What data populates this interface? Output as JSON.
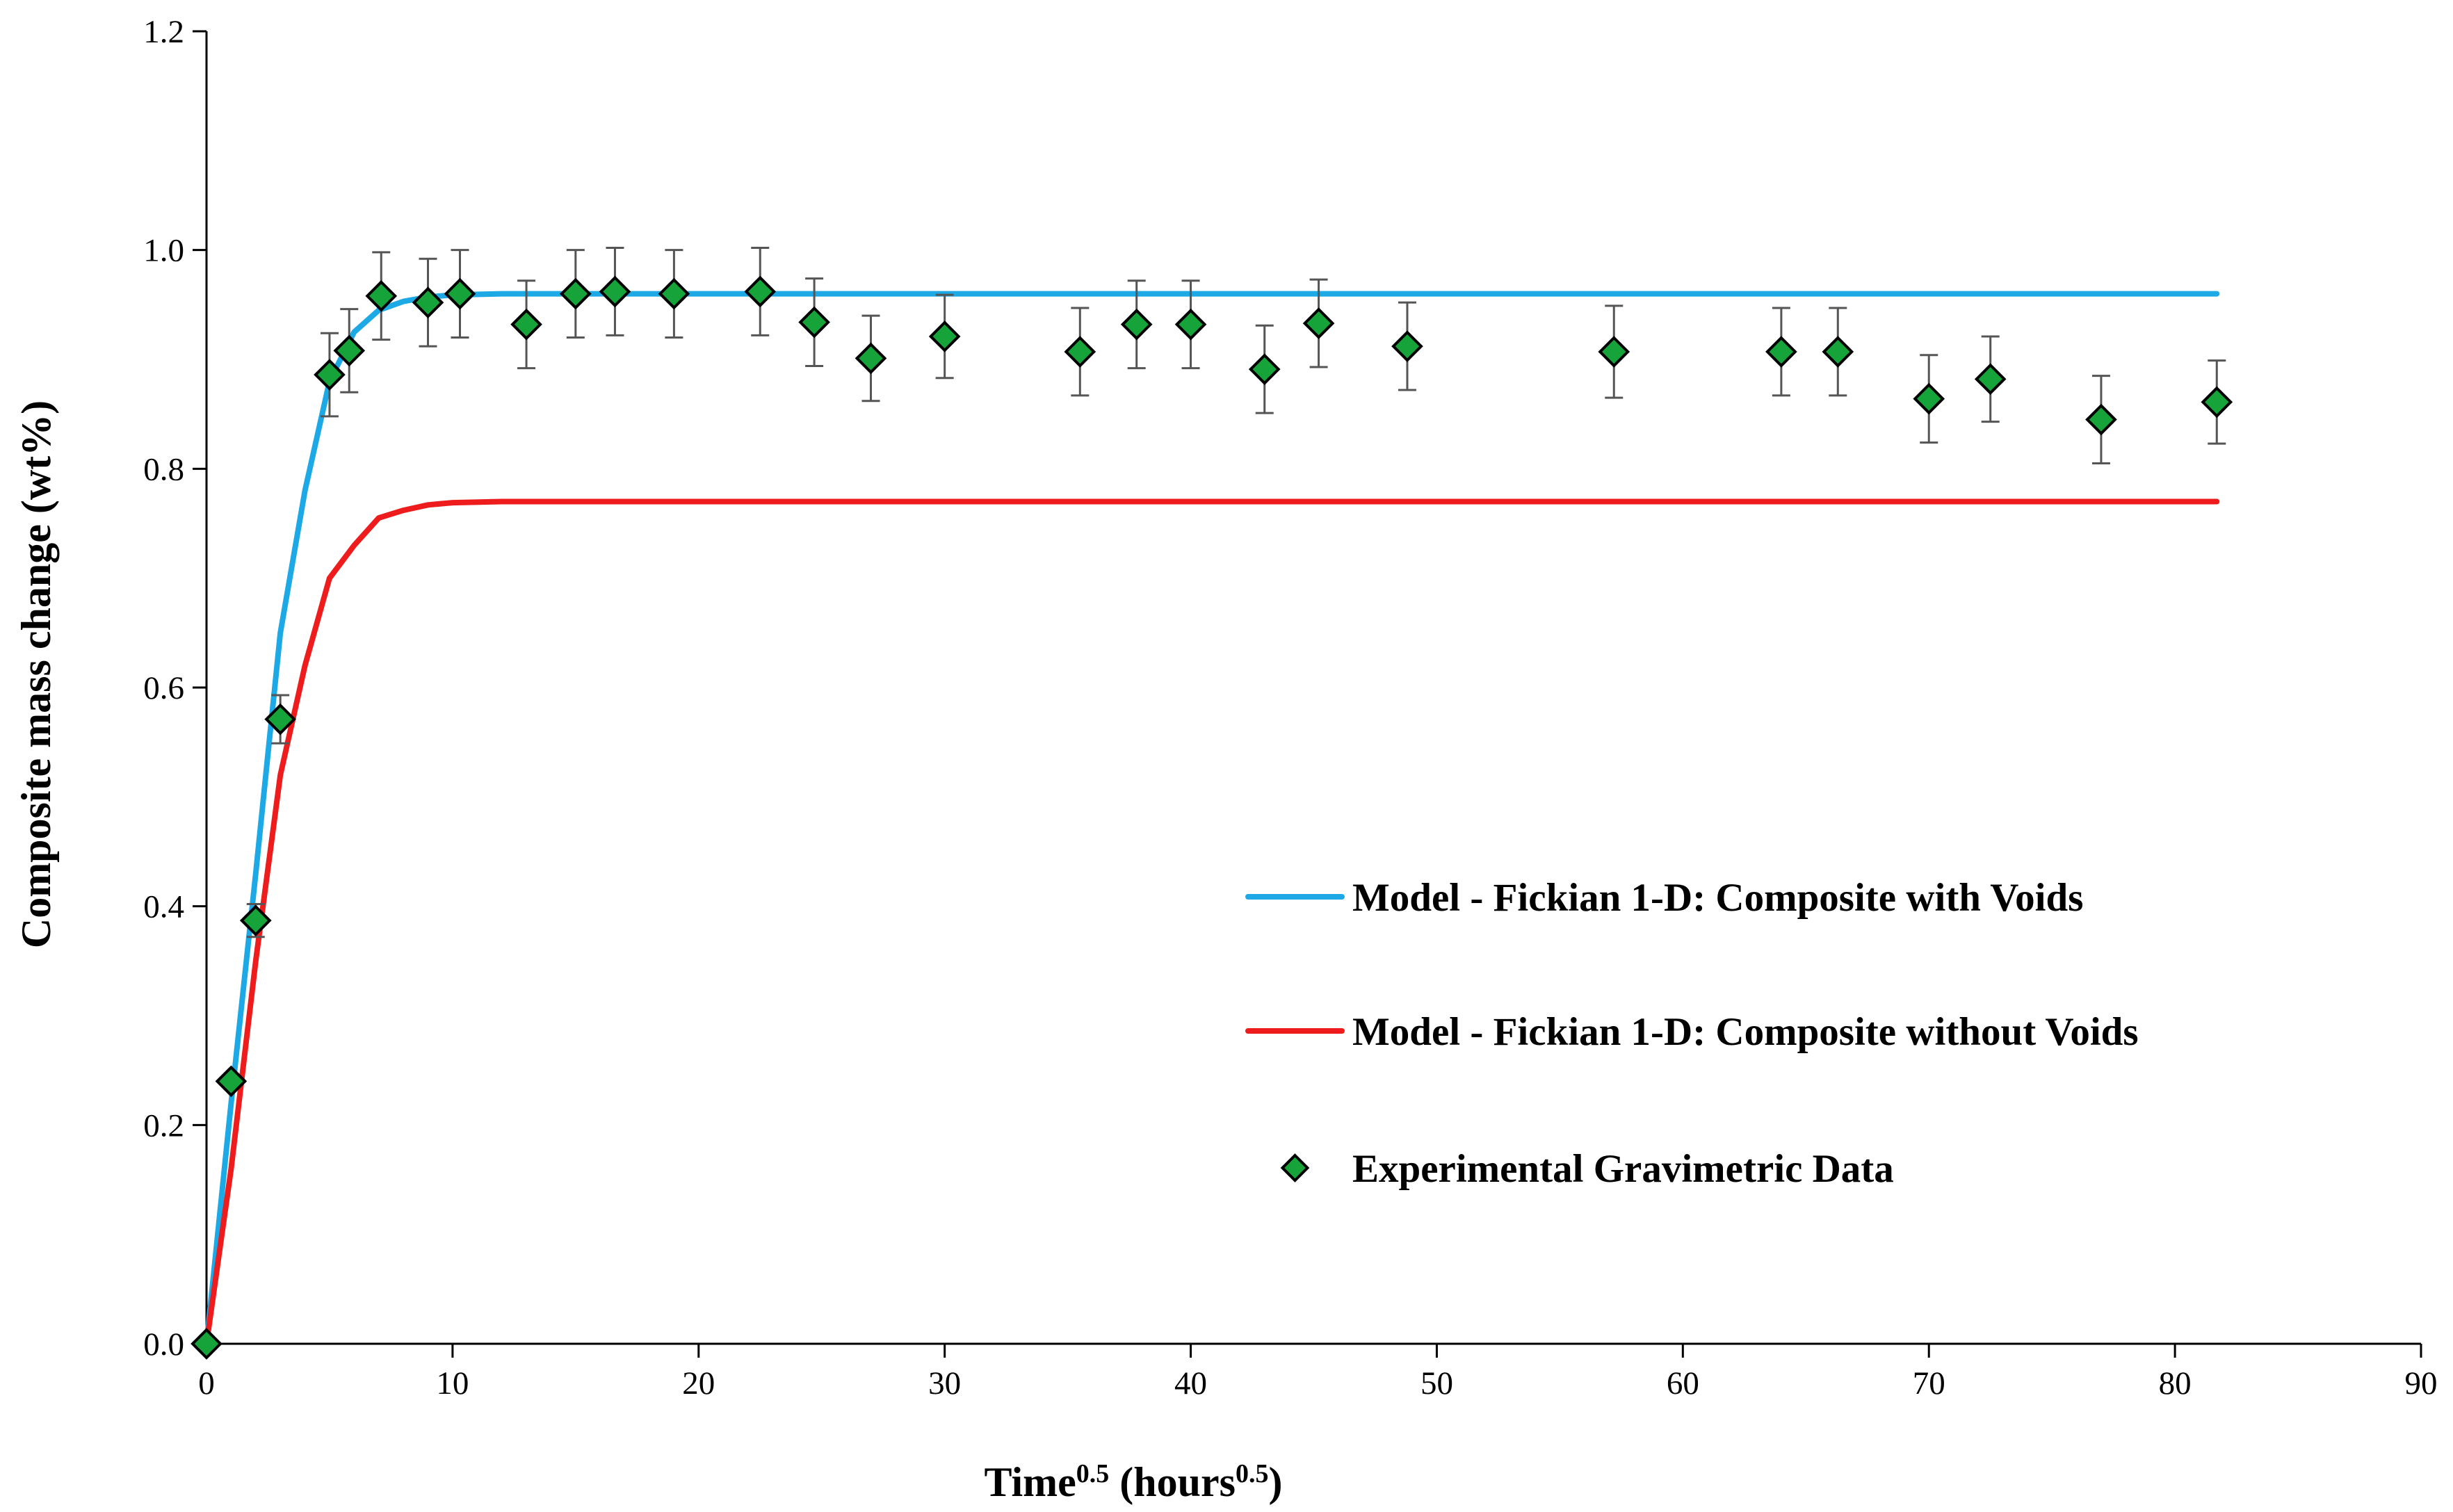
{
  "chart_data": {
    "type": "scatter",
    "title": "",
    "xlabel": {
      "main": "Time",
      "main_sup": "0.5",
      "unit_open": " (hours",
      "unit_sup": "0.5",
      "unit_close": ")"
    },
    "ylabel": "Composite mass change (wt%)",
    "xlim": [
      0,
      90
    ],
    "ylim": [
      0,
      1.2
    ],
    "xticks": [
      "0",
      "10",
      "20",
      "30",
      "40",
      "50",
      "60",
      "70",
      "80",
      "90"
    ],
    "yticks": [
      "0.0",
      "0.2",
      "0.4",
      "0.6",
      "0.8",
      "1.0",
      "1.2"
    ],
    "grid": false,
    "legend_position": "center-right",
    "series": [
      {
        "name": "Model - Fickian 1-D: Composite with Voids",
        "kind": "line",
        "color": "#1CA9E6",
        "x": [
          0,
          1,
          2,
          3,
          4,
          5,
          6,
          7,
          8,
          9,
          10,
          12,
          15,
          20,
          30,
          40,
          50,
          60,
          70,
          81.7
        ],
        "y": [
          0,
          0.22,
          0.43,
          0.65,
          0.78,
          0.88,
          0.925,
          0.945,
          0.953,
          0.957,
          0.959,
          0.96,
          0.96,
          0.96,
          0.96,
          0.96,
          0.96,
          0.96,
          0.96,
          0.96
        ]
      },
      {
        "name": "Model - Fickian 1-D: Composite without Voids",
        "kind": "line",
        "color": "#EE1C1C",
        "x": [
          0,
          1,
          2,
          3,
          4,
          5,
          6,
          7,
          8,
          9,
          10,
          12,
          15,
          20,
          30,
          40,
          50,
          60,
          70,
          81.7
        ],
        "y": [
          0,
          0.16,
          0.35,
          0.52,
          0.62,
          0.7,
          0.73,
          0.755,
          0.762,
          0.767,
          0.769,
          0.77,
          0.77,
          0.77,
          0.77,
          0.77,
          0.77,
          0.77,
          0.77,
          0.77
        ]
      },
      {
        "name": "Experimental Gravimetric Data",
        "kind": "scatter",
        "marker": "diamond",
        "color": "#16A43A",
        "x": [
          0,
          1,
          2,
          3,
          5,
          5.8,
          7.1,
          9,
          10.3,
          13,
          15,
          16.6,
          19,
          22.5,
          24.7,
          27,
          30,
          35.5,
          37.8,
          40,
          43,
          45.2,
          48.8,
          57.2,
          64,
          66.3,
          70,
          72.5,
          77,
          81.7
        ],
        "y": [
          0,
          0.24,
          0.387,
          0.571,
          0.886,
          0.908,
          0.958,
          0.952,
          0.96,
          0.932,
          0.96,
          0.962,
          0.96,
          0.962,
          0.934,
          0.901,
          0.921,
          0.907,
          0.932,
          0.932,
          0.891,
          0.933,
          0.912,
          0.907,
          0.907,
          0.907,
          0.864,
          0.882,
          0.845,
          0.861
        ],
        "yerr": [
          0,
          0,
          0.015,
          0.022,
          0.038,
          0.038,
          0.04,
          0.04,
          0.04,
          0.04,
          0.04,
          0.04,
          0.04,
          0.04,
          0.04,
          0.039,
          0.038,
          0.04,
          0.04,
          0.04,
          0.04,
          0.04,
          0.04,
          0.042,
          0.04,
          0.04,
          0.04,
          0.039,
          0.04,
          0.038
        ]
      }
    ]
  }
}
